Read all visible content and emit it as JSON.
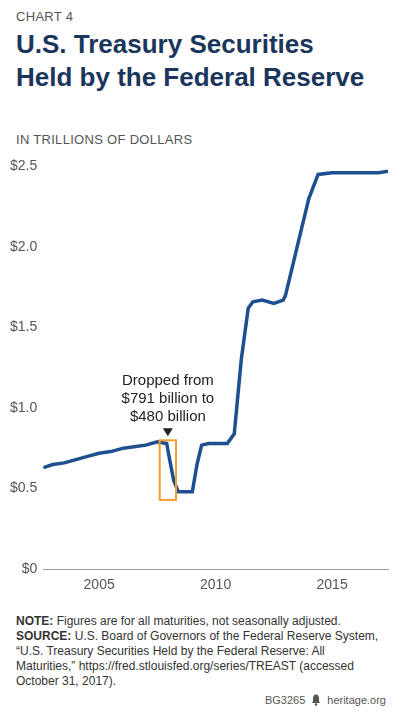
{
  "header": {
    "label": "CHART 4"
  },
  "chart_data": {
    "type": "line",
    "title": "U.S. Treasury Securities Held by the Federal Reserve",
    "subtitle": "IN TRILLIONS OF DOLLARS",
    "x": [
      2002.6,
      2003.0,
      2003.5,
      2004.0,
      2004.5,
      2005.0,
      2005.5,
      2006.0,
      2006.5,
      2007.0,
      2007.5,
      2007.9,
      2008.0,
      2008.2,
      2008.4,
      2008.7,
      2009.0,
      2009.2,
      2009.4,
      2009.7,
      2010.0,
      2010.5,
      2010.8,
      2011.1,
      2011.4,
      2011.6,
      2012.0,
      2012.5,
      2012.9,
      2013.0,
      2013.5,
      2014.0,
      2014.4,
      2015.0,
      2016.0,
      2017.0,
      2017.4
    ],
    "values": [
      0.63,
      0.65,
      0.66,
      0.68,
      0.7,
      0.72,
      0.73,
      0.75,
      0.76,
      0.77,
      0.79,
      0.78,
      0.7,
      0.55,
      0.48,
      0.48,
      0.48,
      0.65,
      0.77,
      0.78,
      0.78,
      0.78,
      0.84,
      1.3,
      1.62,
      1.66,
      1.67,
      1.65,
      1.67,
      1.7,
      2.0,
      2.3,
      2.45,
      2.46,
      2.46,
      2.46,
      2.47
    ],
    "color": "#1d4f91",
    "xlim": [
      2002.6,
      2017.4
    ],
    "xticks": [
      2005,
      2010,
      2015
    ],
    "ylim": [
      0,
      2.5
    ],
    "yticks": [
      {
        "value": 0,
        "label": "$0"
      },
      {
        "value": 0.5,
        "label": "$0.5"
      },
      {
        "value": 1.0,
        "label": "$1.0"
      },
      {
        "value": 1.5,
        "label": "$1.5"
      },
      {
        "value": 2.0,
        "label": "$2.0"
      },
      {
        "value": 2.5,
        "label": "$2.5"
      }
    ],
    "grid": false,
    "annotation": {
      "text": [
        "Dropped from",
        "$791 billion to",
        "$480 billion"
      ],
      "x": [
        2007.6,
        2008.3
      ],
      "y": [
        0.43,
        0.8
      ],
      "color": "#f0a030"
    }
  },
  "footer": {
    "note_label": "NOTE:",
    "note": "Figures are for all maturities, not seasonally adjusted.",
    "source_label": "SOURCE:",
    "source": "U.S. Board of Governors of the Federal Reserve System, “U.S. Treasury Securities Held by the Federal Reserve: All Maturities,” https://fred.stlouisfed.org/series/TREAST (accessed October 31, 2017).",
    "code": "BG3265",
    "site": "heritage.org"
  }
}
